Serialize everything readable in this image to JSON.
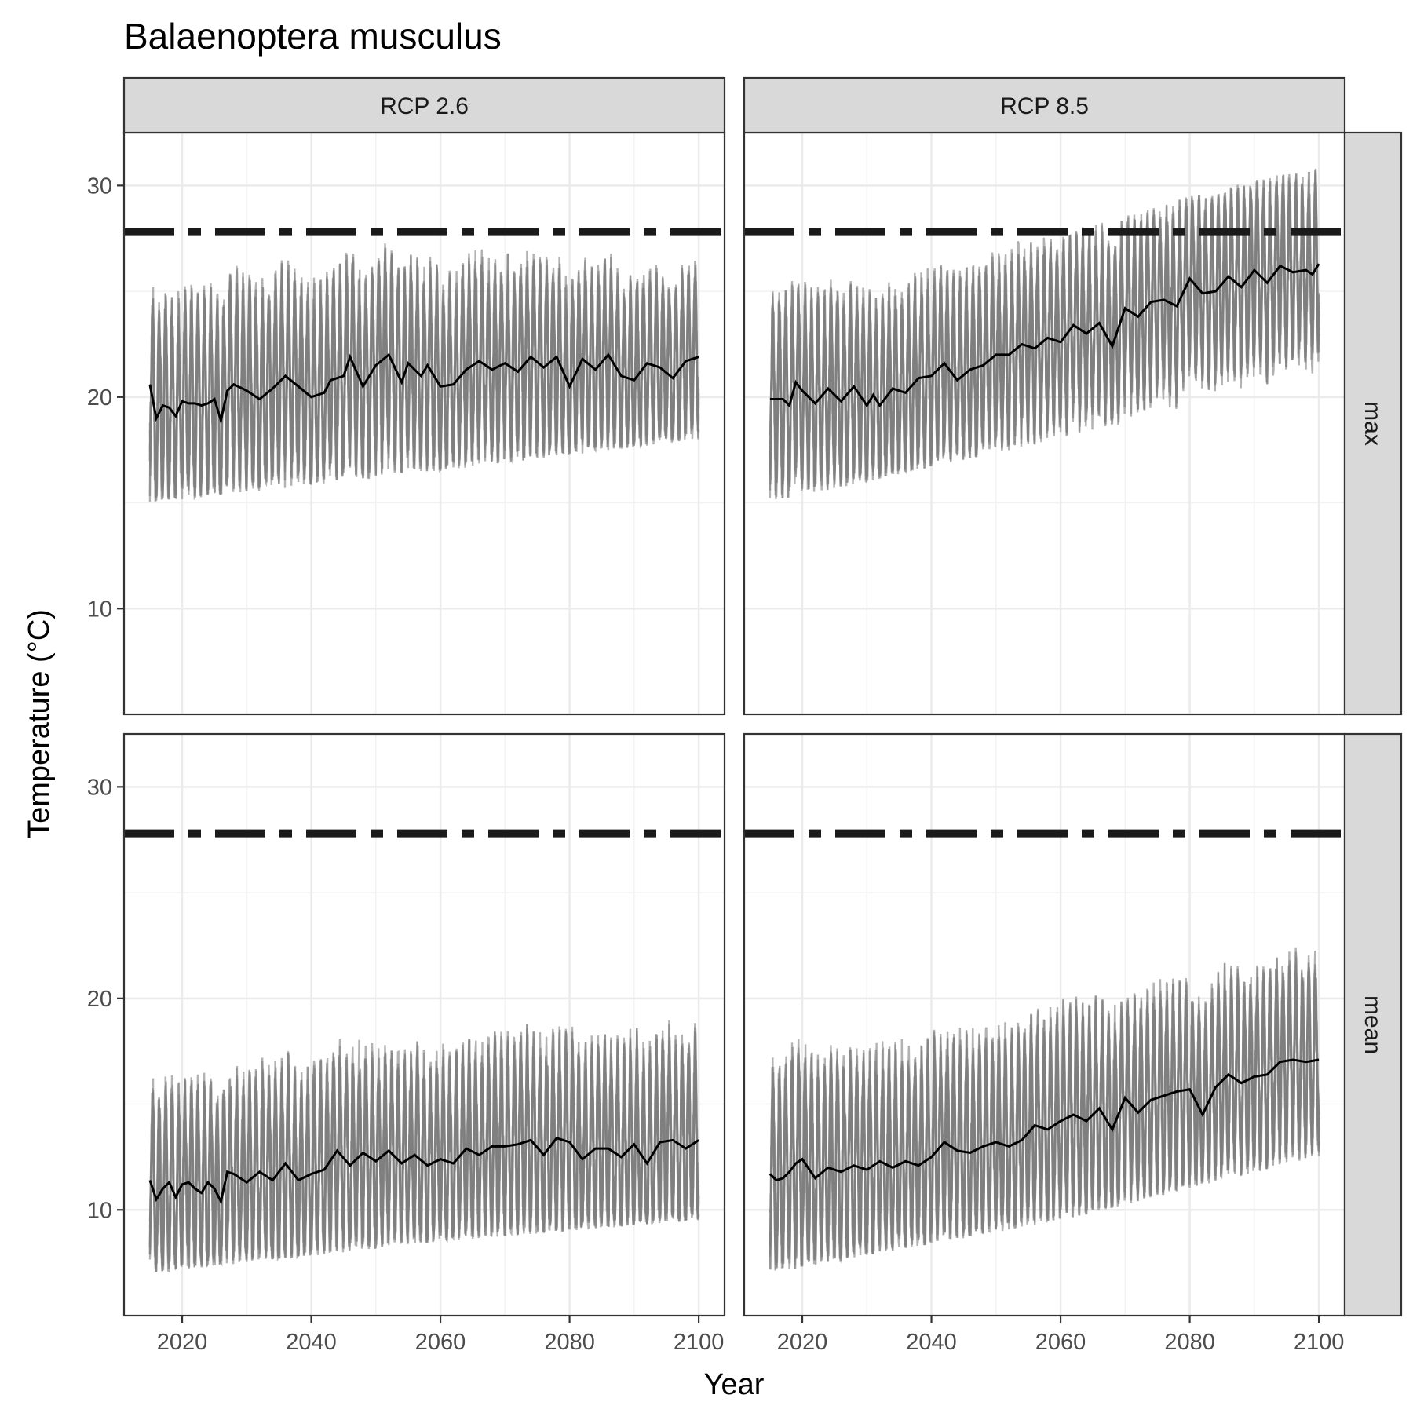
{
  "chart_data": {
    "type": "line",
    "title": "Balaenoptera musculus",
    "xlabel": "Year",
    "ylabel": "Temperature (°C)",
    "xlim": [
      2011,
      2104
    ],
    "ylim": [
      5,
      32.5
    ],
    "x_ticks": [
      2020,
      2040,
      2060,
      2080,
      2100
    ],
    "y_ticks": [
      10,
      20,
      30
    ],
    "grid": true,
    "threshold": {
      "value": 27.8,
      "style": "dashed"
    },
    "columns": [
      "RCP 2.6",
      "RCP 8.5"
    ],
    "rows": [
      "max",
      "mean"
    ],
    "colors": {
      "ensemble": "#7f7f7f",
      "mean_line": "#000000",
      "threshold": "#1a1a1a",
      "strip_bg": "#d9d9d9"
    },
    "panels": [
      {
        "column": "RCP 2.6",
        "row": "max",
        "mean_series": {
          "x": [
            2015,
            2016,
            2017,
            2018,
            2019,
            2020,
            2021,
            2022,
            2023,
            2024,
            2025,
            2026,
            2027,
            2028,
            2030,
            2032,
            2034,
            2036,
            2038,
            2040,
            2042,
            2043,
            2045,
            2046,
            2048,
            2050,
            2052,
            2054,
            2055,
            2057,
            2058,
            2060,
            2062,
            2064,
            2066,
            2068,
            2070,
            2072,
            2074,
            2076,
            2078,
            2080,
            2082,
            2084,
            2086,
            2088,
            2090,
            2092,
            2094,
            2096,
            2098,
            2099,
            2100
          ],
          "y": [
            20.6,
            19.0,
            19.6,
            19.5,
            19.1,
            19.8,
            19.7,
            19.7,
            19.6,
            19.7,
            19.9,
            18.9,
            20.3,
            20.6,
            20.3,
            19.9,
            20.4,
            21.0,
            20.5,
            20.0,
            20.2,
            20.8,
            21.0,
            21.9,
            20.5,
            21.5,
            22.0,
            20.7,
            21.6,
            21.0,
            21.5,
            20.5,
            20.6,
            21.3,
            21.7,
            21.3,
            21.6,
            21.2,
            21.9,
            21.4,
            21.9,
            20.5,
            21.8,
            21.3,
            22.0,
            21.0,
            20.8,
            21.6,
            21.4,
            20.9,
            21.7,
            21.8,
            21.9
          ]
        },
        "ensemble_range": {
          "x": [
            2015,
            2060,
            2100
          ],
          "low": [
            15.0,
            16.5,
            18.0
          ],
          "high": [
            26.5,
            27.5,
            27.5
          ]
        }
      },
      {
        "column": "RCP 8.5",
        "row": "max",
        "mean_series": {
          "x": [
            2015,
            2017,
            2018,
            2019,
            2020,
            2022,
            2024,
            2026,
            2028,
            2030,
            2031,
            2032,
            2034,
            2036,
            2038,
            2040,
            2042,
            2044,
            2046,
            2048,
            2050,
            2052,
            2054,
            2056,
            2058,
            2060,
            2062,
            2064,
            2066,
            2068,
            2070,
            2072,
            2074,
            2076,
            2078,
            2080,
            2082,
            2084,
            2086,
            2088,
            2090,
            2092,
            2094,
            2096,
            2098,
            2099,
            2100
          ],
          "y": [
            19.9,
            19.9,
            19.6,
            20.7,
            20.3,
            19.7,
            20.4,
            19.8,
            20.5,
            19.6,
            20.1,
            19.6,
            20.4,
            20.2,
            20.9,
            21.0,
            21.6,
            20.8,
            21.3,
            21.5,
            22.0,
            22.0,
            22.5,
            22.3,
            22.8,
            22.6,
            23.4,
            23.0,
            23.5,
            22.4,
            24.2,
            23.8,
            24.5,
            24.6,
            24.3,
            25.6,
            24.9,
            25.0,
            25.7,
            25.2,
            26.0,
            25.4,
            26.2,
            25.9,
            26.0,
            25.8,
            26.3
          ]
        },
        "ensemble_range": {
          "x": [
            2015,
            2060,
            2100
          ],
          "low": [
            15.0,
            18.0,
            21.0
          ],
          "high": [
            26.0,
            28.0,
            31.0
          ]
        }
      },
      {
        "column": "RCP 2.6",
        "row": "mean",
        "mean_series": {
          "x": [
            2015,
            2016,
            2017,
            2018,
            2019,
            2020,
            2021,
            2022,
            2023,
            2024,
            2025,
            2026,
            2027,
            2028,
            2030,
            2032,
            2034,
            2036,
            2038,
            2040,
            2042,
            2044,
            2046,
            2048,
            2050,
            2052,
            2054,
            2056,
            2058,
            2060,
            2062,
            2064,
            2066,
            2068,
            2070,
            2072,
            2074,
            2076,
            2078,
            2080,
            2082,
            2084,
            2086,
            2088,
            2090,
            2092,
            2094,
            2096,
            2098,
            2099,
            2100
          ],
          "y": [
            11.4,
            10.5,
            11.0,
            11.3,
            10.6,
            11.2,
            11.3,
            11.0,
            10.8,
            11.3,
            11.0,
            10.4,
            11.8,
            11.7,
            11.3,
            11.8,
            11.4,
            12.2,
            11.4,
            11.7,
            11.9,
            12.8,
            12.1,
            12.7,
            12.3,
            12.8,
            12.2,
            12.6,
            12.1,
            12.4,
            12.2,
            12.9,
            12.6,
            13.0,
            13.0,
            13.1,
            13.3,
            12.6,
            13.4,
            13.2,
            12.4,
            12.9,
            12.9,
            12.5,
            13.1,
            12.2,
            13.2,
            13.3,
            12.9,
            13.1,
            13.3
          ]
        },
        "ensemble_range": {
          "x": [
            2015,
            2060,
            2100
          ],
          "low": [
            7.0,
            8.5,
            9.5
          ],
          "high": [
            18.0,
            19.5,
            21.0
          ]
        }
      },
      {
        "column": "RCP 8.5",
        "row": "mean",
        "mean_series": {
          "x": [
            2015,
            2016,
            2017,
            2018,
            2019,
            2020,
            2022,
            2024,
            2026,
            2028,
            2030,
            2032,
            2034,
            2036,
            2038,
            2040,
            2042,
            2044,
            2046,
            2048,
            2050,
            2052,
            2054,
            2056,
            2058,
            2060,
            2062,
            2064,
            2066,
            2068,
            2070,
            2072,
            2074,
            2076,
            2078,
            2080,
            2082,
            2084,
            2086,
            2088,
            2090,
            2092,
            2094,
            2096,
            2098,
            2100
          ],
          "y": [
            11.7,
            11.4,
            11.5,
            11.8,
            12.2,
            12.4,
            11.5,
            12.0,
            11.8,
            12.1,
            11.9,
            12.3,
            12.0,
            12.3,
            12.1,
            12.5,
            13.2,
            12.8,
            12.7,
            13.0,
            13.2,
            13.0,
            13.3,
            14.0,
            13.8,
            14.2,
            14.5,
            14.2,
            14.8,
            13.8,
            15.3,
            14.6,
            15.2,
            15.4,
            15.6,
            15.7,
            14.5,
            15.8,
            16.4,
            16.0,
            16.3,
            16.4,
            17.0,
            17.1,
            17.0,
            17.1
          ]
        },
        "ensemble_range": {
          "x": [
            2015,
            2060,
            2100
          ],
          "low": [
            7.0,
            9.5,
            12.5
          ],
          "high": [
            19.0,
            21.0,
            23.0
          ]
        }
      }
    ]
  }
}
